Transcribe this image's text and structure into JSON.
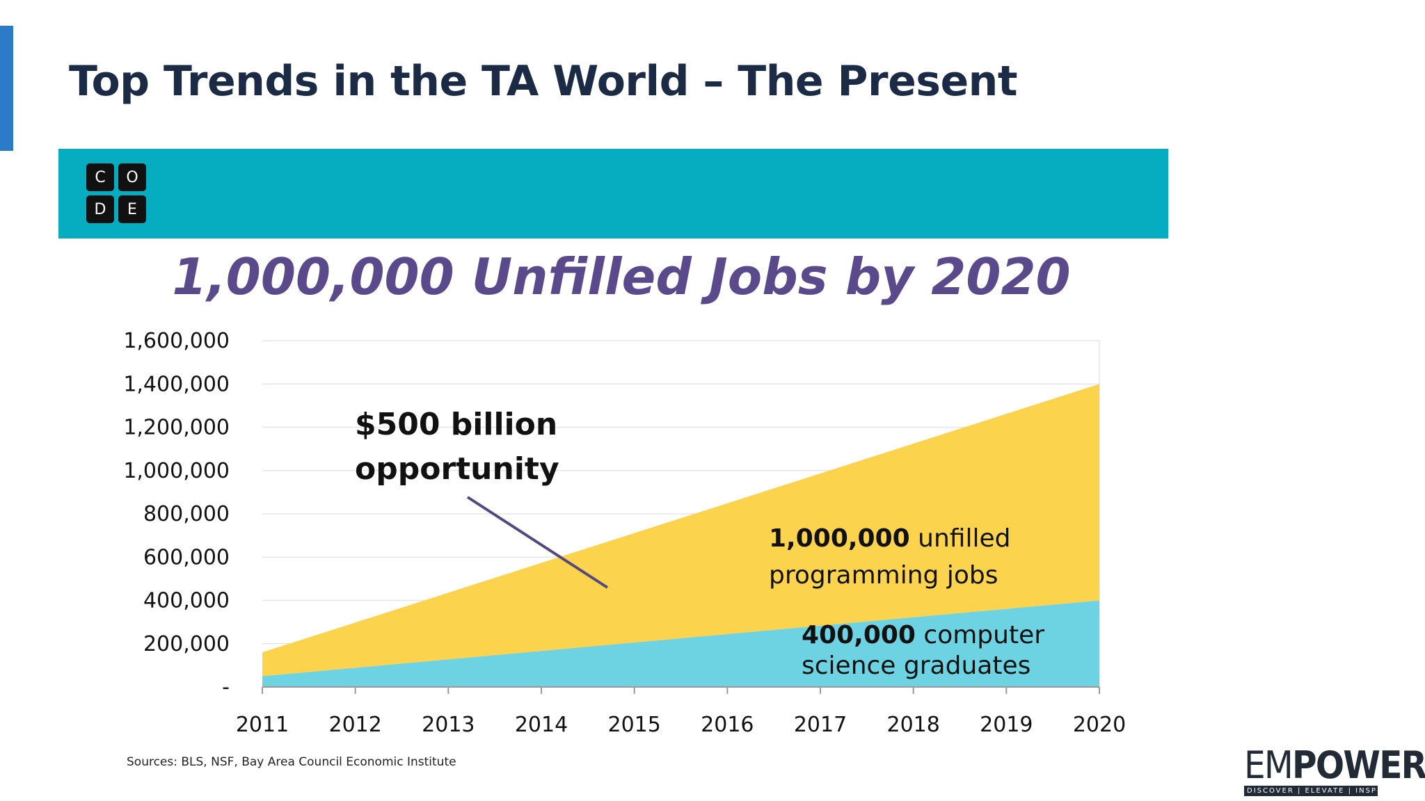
{
  "slide": {
    "title": "Top Trends in the TA World – The Present",
    "accent_color": "#2b7bc9",
    "banner_color": "#06adc0",
    "sources": "Sources: BLS, NSF, Bay Area Council Economic Institute"
  },
  "code_logo": {
    "letters": [
      "C",
      "O",
      "D",
      "E"
    ],
    "icon": "code-org-logo"
  },
  "empower_logo": {
    "word_regular": "EM",
    "word_bold": "POWER",
    "tagline": "DISCOVER | ELEVATE | INSPIRE"
  },
  "chart_data": {
    "type": "area",
    "title": "1,000,000 Unfilled Jobs by 2020",
    "title_color": "#5a4a8c",
    "xlabel": "",
    "ylabel": "",
    "x": [
      2011,
      2020
    ],
    "x_ticks": [
      "2011",
      "2012",
      "2013",
      "2014",
      "2015",
      "2016",
      "2017",
      "2018",
      "2019",
      "2020"
    ],
    "y_ticks": [
      "-",
      "200,000",
      "400,000",
      "600,000",
      "800,000",
      "1,000,000",
      "1,200,000",
      "1,400,000",
      "1,600,000"
    ],
    "ylim": [
      0,
      1600000
    ],
    "grid": true,
    "stacked": true,
    "series": [
      {
        "values": [
          50000,
          400000
        ],
        "color": "#6dd3e3"
      },
      {
        "values": [
          110000,
          1000000
        ],
        "color": "#fcd34d"
      }
    ],
    "annotations": {
      "opportunity": {
        "line1": "$500 billion",
        "line2": "opportunity"
      },
      "jobs": {
        "bold": "1,000,000",
        "rest": " unfilled",
        "line2": "programming jobs"
      },
      "grads": {
        "bold": "400,000",
        "rest": " computer",
        "line2": "science graduates"
      }
    }
  }
}
